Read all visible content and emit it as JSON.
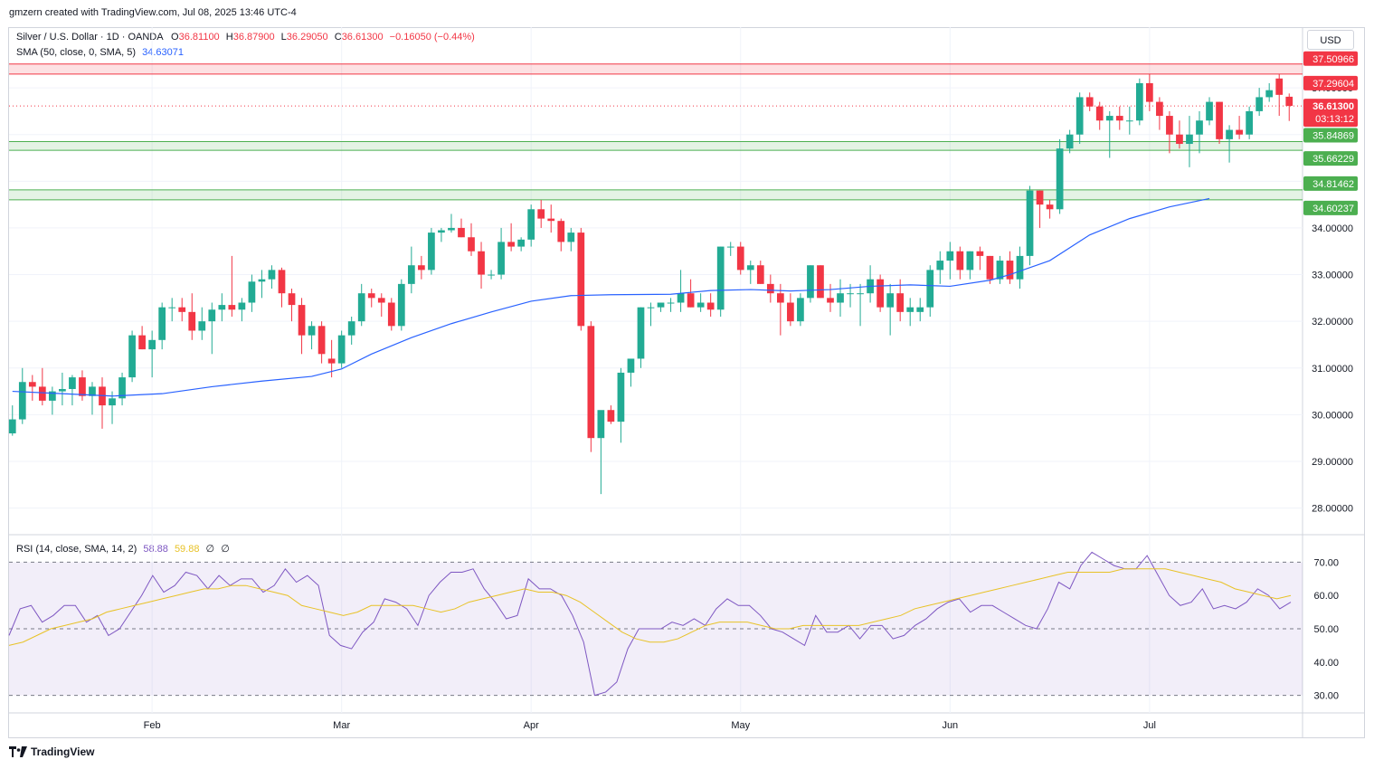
{
  "caption": "gmzern created with TradingView.com, Jul 08, 2025 13:46 UTC-4",
  "symbol_line": {
    "symbol": "Silver / U.S. Dollar · 1D · OANDA",
    "o_label": "O",
    "o_value": "36.81100",
    "h_label": "H",
    "h_value": "36.87900",
    "l_label": "L",
    "l_value": "36.29050",
    "c_label": "C",
    "c_value": "36.61300",
    "change": "−0.16050 (−0.44%)"
  },
  "sma_line": {
    "label": "SMA (50, close, 0, SMA, 5)",
    "value": "34.63071"
  },
  "rsi_line": {
    "label": "RSI (14, close, SMA, 14, 2)",
    "rsi_value": "58.88",
    "ma_value": "59.88",
    "extra1": "∅",
    "extra2": "∅"
  },
  "currency_button": "USD",
  "footer_logo": "TradingView",
  "colors": {
    "up": "#22ab94",
    "down": "#f23645",
    "sma": "#2962ff",
    "rsi": "#7e57c2",
    "rsi_ma": "#e8c227",
    "resistance": "#f23645",
    "support": "#4caf50"
  },
  "price_badges": {
    "last": "36.61300",
    "countdown": "03:13:12"
  },
  "zone_labels": [
    {
      "text": "37.50966",
      "type": "resistance"
    },
    {
      "text": "37.29604",
      "type": "resistance"
    },
    {
      "text": "35.84869",
      "type": "support"
    },
    {
      "text": "35.66229",
      "type": "support"
    },
    {
      "text": "34.81462",
      "type": "support"
    },
    {
      "text": "34.60237",
      "type": "support"
    }
  ],
  "chart_data": {
    "type": "candlestick",
    "title": "Silver / U.S. Dollar · 1D · OANDA",
    "y_axis_ticks": [
      "28.00000",
      "29.00000",
      "30.00000",
      "31.00000",
      "32.00000",
      "33.00000",
      "34.00000",
      "35.00000",
      "36.00000",
      "37.00000"
    ],
    "ylim": [
      27.45,
      38.3
    ],
    "x_axis_labels": [
      {
        "label": "Feb",
        "index": 14
      },
      {
        "label": "Mar",
        "index": 33
      },
      {
        "label": "Apr",
        "index": 52
      },
      {
        "label": "May",
        "index": 73
      },
      {
        "label": "Jun",
        "index": 94
      },
      {
        "label": "Jul",
        "index": 114
      }
    ],
    "zones": [
      {
        "low": 37.29604,
        "high": 37.50966,
        "type": "resistance"
      },
      {
        "low": 35.66229,
        "high": 35.84869,
        "type": "support"
      },
      {
        "low": 34.60237,
        "high": 34.81462,
        "type": "support"
      }
    ],
    "last_price": 36.613,
    "ohlc": [
      [
        29.6,
        30.2,
        29.55,
        29.9
      ],
      [
        29.9,
        31.0,
        29.8,
        30.7
      ],
      [
        30.7,
        30.85,
        30.3,
        30.6
      ],
      [
        30.6,
        31.0,
        30.2,
        30.3
      ],
      [
        30.3,
        30.6,
        30.0,
        30.5
      ],
      [
        30.5,
        30.9,
        30.2,
        30.55
      ],
      [
        30.55,
        30.85,
        30.2,
        30.8
      ],
      [
        30.8,
        30.95,
        30.3,
        30.4
      ],
      [
        30.4,
        30.7,
        30.0,
        30.6
      ],
      [
        30.6,
        30.8,
        29.7,
        30.2
      ],
      [
        30.2,
        30.5,
        29.8,
        30.35
      ],
      [
        30.35,
        30.9,
        30.2,
        30.8
      ],
      [
        30.8,
        31.8,
        30.7,
        31.7
      ],
      [
        31.7,
        31.9,
        31.4,
        31.4
      ],
      [
        31.4,
        31.8,
        30.8,
        31.6
      ],
      [
        31.6,
        32.4,
        31.4,
        32.3
      ],
      [
        32.3,
        32.5,
        32.0,
        32.3
      ],
      [
        32.3,
        32.5,
        32.0,
        32.2
      ],
      [
        32.2,
        32.6,
        31.6,
        31.8
      ],
      [
        31.8,
        32.3,
        31.6,
        32.0
      ],
      [
        32.0,
        32.4,
        31.3,
        32.25
      ],
      [
        32.25,
        32.6,
        32.0,
        32.35
      ],
      [
        32.35,
        33.4,
        32.1,
        32.25
      ],
      [
        32.25,
        32.5,
        32.0,
        32.4
      ],
      [
        32.4,
        33.0,
        32.2,
        32.85
      ],
      [
        32.85,
        33.1,
        32.5,
        32.9
      ],
      [
        32.9,
        33.2,
        32.7,
        33.1
      ],
      [
        33.1,
        33.15,
        32.3,
        32.6
      ],
      [
        32.6,
        32.7,
        32.0,
        32.35
      ],
      [
        32.35,
        32.5,
        31.3,
        31.7
      ],
      [
        31.7,
        32.0,
        31.4,
        31.9
      ],
      [
        31.9,
        32.0,
        31.1,
        31.3
      ],
      [
        31.2,
        31.6,
        30.8,
        31.1
      ],
      [
        31.1,
        31.8,
        31.0,
        31.7
      ],
      [
        31.7,
        32.1,
        31.5,
        32.0
      ],
      [
        32.0,
        32.8,
        31.9,
        32.6
      ],
      [
        32.6,
        32.7,
        32.3,
        32.5
      ],
      [
        32.5,
        32.6,
        32.1,
        32.4
      ],
      [
        32.4,
        32.5,
        31.8,
        31.9
      ],
      [
        31.9,
        32.9,
        31.8,
        32.8
      ],
      [
        32.8,
        33.6,
        32.6,
        33.2
      ],
      [
        33.2,
        33.4,
        32.9,
        33.1
      ],
      [
        33.1,
        34.0,
        33.0,
        33.9
      ],
      [
        33.9,
        34.0,
        33.7,
        33.95
      ],
      [
        33.95,
        34.3,
        33.9,
        34.0
      ],
      [
        34.0,
        34.2,
        33.8,
        33.8
      ],
      [
        33.8,
        34.1,
        33.4,
        33.5
      ],
      [
        33.5,
        33.7,
        32.7,
        33.0
      ],
      [
        33.0,
        33.1,
        32.9,
        33.0
      ],
      [
        33.0,
        34.0,
        32.9,
        33.7
      ],
      [
        33.7,
        34.1,
        33.5,
        33.6
      ],
      [
        33.6,
        33.8,
        33.5,
        33.75
      ],
      [
        33.75,
        34.5,
        33.6,
        34.4
      ],
      [
        34.4,
        34.6,
        34.0,
        34.2
      ],
      [
        34.2,
        34.5,
        33.9,
        34.15
      ],
      [
        34.15,
        34.2,
        33.5,
        33.7
      ],
      [
        33.7,
        34.0,
        33.5,
        33.9
      ],
      [
        33.9,
        34.0,
        31.8,
        31.9
      ],
      [
        31.9,
        32.0,
        29.2,
        29.5
      ],
      [
        29.5,
        30.0,
        28.3,
        30.1
      ],
      [
        30.1,
        30.2,
        29.8,
        29.85
      ],
      [
        29.85,
        31.0,
        29.4,
        30.9
      ],
      [
        30.9,
        31.1,
        30.6,
        31.2
      ],
      [
        31.2,
        32.3,
        31.0,
        32.3
      ],
      [
        32.3,
        32.4,
        31.9,
        32.3
      ],
      [
        32.3,
        32.4,
        32.2,
        32.4
      ],
      [
        32.4,
        32.5,
        32.2,
        32.4
      ],
      [
        32.4,
        33.1,
        32.2,
        32.6
      ],
      [
        32.6,
        32.9,
        32.3,
        32.3
      ],
      [
        32.3,
        32.6,
        32.2,
        32.4
      ],
      [
        32.4,
        32.6,
        32.1,
        32.25
      ],
      [
        32.25,
        33.6,
        32.1,
        33.6
      ],
      [
        33.6,
        33.7,
        33.4,
        33.6
      ],
      [
        33.6,
        33.7,
        33.0,
        33.1
      ],
      [
        33.1,
        33.3,
        32.8,
        33.2
      ],
      [
        33.2,
        33.3,
        32.8,
        32.8
      ],
      [
        32.8,
        33.0,
        32.4,
        32.6
      ],
      [
        32.6,
        32.8,
        31.7,
        32.4
      ],
      [
        32.4,
        32.6,
        31.9,
        32.0
      ],
      [
        32.0,
        32.6,
        31.9,
        32.5
      ],
      [
        32.5,
        33.2,
        32.4,
        33.2
      ],
      [
        33.2,
        33.2,
        32.5,
        32.5
      ],
      [
        32.5,
        32.8,
        32.2,
        32.4
      ],
      [
        32.4,
        32.9,
        32.1,
        32.6
      ],
      [
        32.6,
        32.8,
        32.3,
        32.6
      ],
      [
        32.6,
        32.8,
        31.9,
        32.6
      ],
      [
        32.6,
        33.2,
        32.4,
        32.9
      ],
      [
        32.9,
        33.0,
        32.2,
        32.3
      ],
      [
        32.3,
        32.8,
        31.7,
        32.6
      ],
      [
        32.6,
        32.9,
        32.0,
        32.2
      ],
      [
        32.2,
        32.5,
        31.9,
        32.3
      ],
      [
        32.2,
        32.5,
        32.0,
        32.3
      ],
      [
        32.3,
        33.2,
        32.1,
        33.1
      ],
      [
        33.1,
        33.5,
        32.8,
        33.3
      ],
      [
        33.3,
        33.7,
        32.9,
        33.5
      ],
      [
        33.5,
        33.6,
        32.9,
        33.1
      ],
      [
        33.1,
        33.5,
        32.9,
        33.5
      ],
      [
        33.5,
        33.6,
        33.1,
        33.4
      ],
      [
        33.4,
        33.4,
        32.8,
        32.9
      ],
      [
        32.9,
        33.4,
        32.8,
        33.3
      ],
      [
        33.3,
        33.5,
        32.8,
        32.9
      ],
      [
        32.9,
        33.6,
        32.7,
        33.4
      ],
      [
        33.4,
        34.9,
        33.2,
        34.8
      ],
      [
        34.8,
        34.8,
        34.0,
        34.5
      ],
      [
        34.5,
        34.6,
        34.2,
        34.4
      ],
      [
        34.4,
        35.9,
        34.3,
        35.7
      ],
      [
        35.7,
        36.1,
        35.6,
        36.0
      ],
      [
        36.0,
        36.9,
        35.8,
        36.8
      ],
      [
        36.8,
        36.9,
        36.5,
        36.6
      ],
      [
        36.6,
        36.7,
        36.1,
        36.3
      ],
      [
        36.3,
        36.5,
        35.5,
        36.4
      ],
      [
        36.4,
        36.6,
        36.1,
        36.3
      ],
      [
        36.3,
        36.6,
        36.0,
        36.3
      ],
      [
        36.3,
        37.2,
        36.2,
        37.1
      ],
      [
        37.1,
        37.3,
        36.5,
        36.7
      ],
      [
        36.7,
        36.8,
        36.1,
        36.4
      ],
      [
        36.4,
        36.5,
        35.6,
        36.0
      ],
      [
        36.0,
        36.3,
        35.7,
        35.8
      ],
      [
        35.8,
        36.4,
        35.3,
        36.0
      ],
      [
        36.0,
        36.5,
        35.6,
        36.3
      ],
      [
        36.3,
        36.8,
        36.2,
        36.7
      ],
      [
        36.7,
        36.7,
        35.8,
        35.9
      ],
      [
        35.9,
        36.2,
        35.4,
        36.1
      ],
      [
        36.1,
        36.4,
        35.9,
        36.0
      ],
      [
        36.0,
        36.6,
        35.9,
        36.5
      ],
      [
        36.5,
        37.0,
        36.4,
        36.8
      ],
      [
        36.8,
        37.1,
        36.7,
        36.95
      ],
      [
        37.2,
        37.3,
        36.4,
        36.85
      ],
      [
        36.81,
        36.879,
        36.2905,
        36.613
      ]
    ],
    "sma": [
      [
        0,
        30.5
      ],
      [
        5,
        30.45
      ],
      [
        10,
        30.4
      ],
      [
        15,
        30.45
      ],
      [
        20,
        30.6
      ],
      [
        25,
        30.72
      ],
      [
        30,
        30.82
      ],
      [
        33,
        30.98
      ],
      [
        36,
        31.3
      ],
      [
        40,
        31.65
      ],
      [
        44,
        31.95
      ],
      [
        48,
        32.2
      ],
      [
        52,
        32.43
      ],
      [
        56,
        32.55
      ],
      [
        60,
        32.57
      ],
      [
        66,
        32.58
      ],
      [
        70,
        32.66
      ],
      [
        74,
        32.68
      ],
      [
        78,
        32.65
      ],
      [
        82,
        32.68
      ],
      [
        86,
        32.75
      ],
      [
        90,
        32.78
      ],
      [
        94,
        32.75
      ],
      [
        98,
        32.88
      ],
      [
        100,
        33.0
      ],
      [
        104,
        33.3
      ],
      [
        108,
        33.85
      ],
      [
        112,
        34.2
      ],
      [
        116,
        34.45
      ],
      [
        120,
        34.63
      ]
    ],
    "rsi_panel": {
      "y_axis_ticks": [
        "30.00",
        "40.00",
        "50.00",
        "60.00",
        "70.00"
      ],
      "ylim": [
        25,
        78
      ],
      "band": [
        30,
        70
      ],
      "rsi": [
        48,
        56,
        57,
        52,
        54,
        57,
        57,
        52,
        54,
        48,
        50,
        55,
        60,
        66,
        61,
        63,
        67,
        66,
        62,
        66,
        63,
        65,
        65,
        61,
        63,
        68,
        64,
        66,
        63,
        48,
        45,
        44,
        49,
        52,
        59,
        58,
        56,
        51,
        60,
        64,
        67,
        67,
        68,
        62,
        58,
        53,
        54,
        65,
        62,
        62,
        60,
        54,
        46,
        30,
        31,
        34,
        44,
        50,
        50,
        50,
        52,
        51,
        53,
        51,
        56,
        59,
        57,
        57,
        54,
        50,
        49,
        47,
        45,
        54,
        49,
        49,
        51,
        47,
        51,
        51,
        47,
        48,
        51,
        53,
        56,
        58,
        59,
        55,
        57,
        57,
        55,
        53,
        51,
        50,
        56,
        64,
        62,
        69,
        73,
        71,
        69,
        68,
        68,
        72,
        66,
        60,
        57,
        58,
        62,
        56,
        57,
        56,
        58,
        62,
        60,
        56,
        58
      ],
      "rsi_ma": [
        45,
        46,
        48,
        50,
        51,
        52,
        53,
        55,
        56,
        57,
        58,
        59,
        60,
        61,
        62,
        62,
        63,
        63,
        62,
        61,
        60,
        57,
        56,
        55,
        54,
        55,
        57,
        57,
        57,
        57,
        56,
        55,
        56,
        58,
        59,
        60,
        61,
        62,
        61,
        61,
        60,
        58,
        55,
        52,
        49,
        47,
        46,
        46,
        47,
        49,
        51,
        52,
        52,
        52,
        51,
        50,
        50,
        51,
        51,
        51,
        51,
        51,
        52,
        53,
        54,
        56,
        57,
        58,
        59,
        60,
        61,
        62,
        63,
        64,
        65,
        66,
        67,
        67,
        67,
        67,
        68,
        68,
        68,
        68,
        67,
        66,
        65,
        64,
        62,
        61,
        60,
        59,
        60
      ]
    }
  }
}
